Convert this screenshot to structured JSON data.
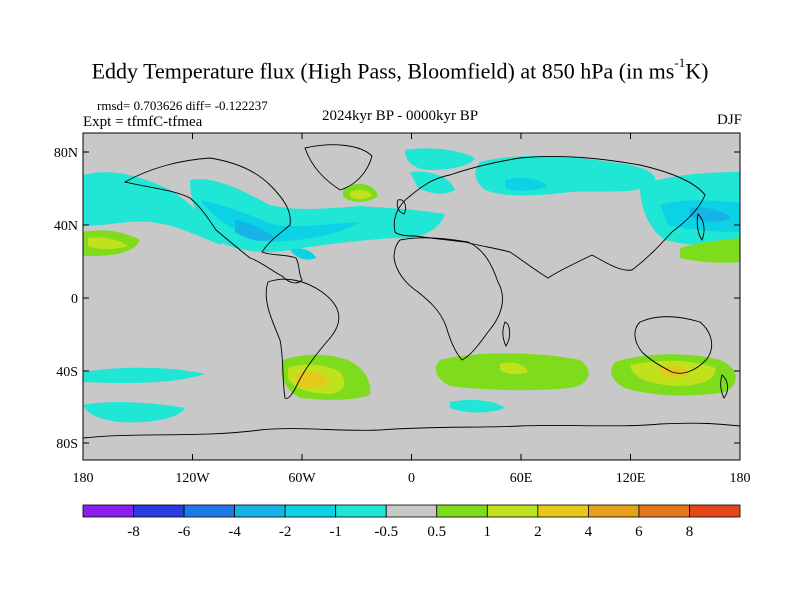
{
  "title": {
    "text_before": "Eddy Temperature flux (High Pass, Bloomfield) at 850 hPa (in ms",
    "superscript": "-1",
    "text_after": "K)"
  },
  "stats_line": "rmsd= 0.703626 diff= -0.122237",
  "experiment_line": "Expt = tfmfC-tfmea",
  "period_line": "2024kyr BP - 0000kyr BP",
  "season": "DJF",
  "axes": {
    "lat_ticks": [
      "80N",
      "40N",
      "0",
      "40S",
      "80S"
    ],
    "lon_ticks": [
      "180",
      "120W",
      "60W",
      "0",
      "60E",
      "120E",
      "180"
    ]
  },
  "colorbar": {
    "labels": [
      "-8",
      "-6",
      "-4",
      "-2",
      "-1",
      "-0.5",
      "0.5",
      "1",
      "2",
      "4",
      "6",
      "8"
    ],
    "colors": [
      "#8a1eef",
      "#2a3ce0",
      "#1e78e6",
      "#16b4e6",
      "#0cd2e6",
      "#20e6d6",
      "#c8c8c8",
      "#7fdc1c",
      "#bfe21c",
      "#e6c81c",
      "#e6a01c",
      "#e6781c",
      "#e6461c"
    ]
  },
  "map_colors": {
    "ocean_land_background": "#c8c8c8",
    "coastline": "#000000"
  }
}
